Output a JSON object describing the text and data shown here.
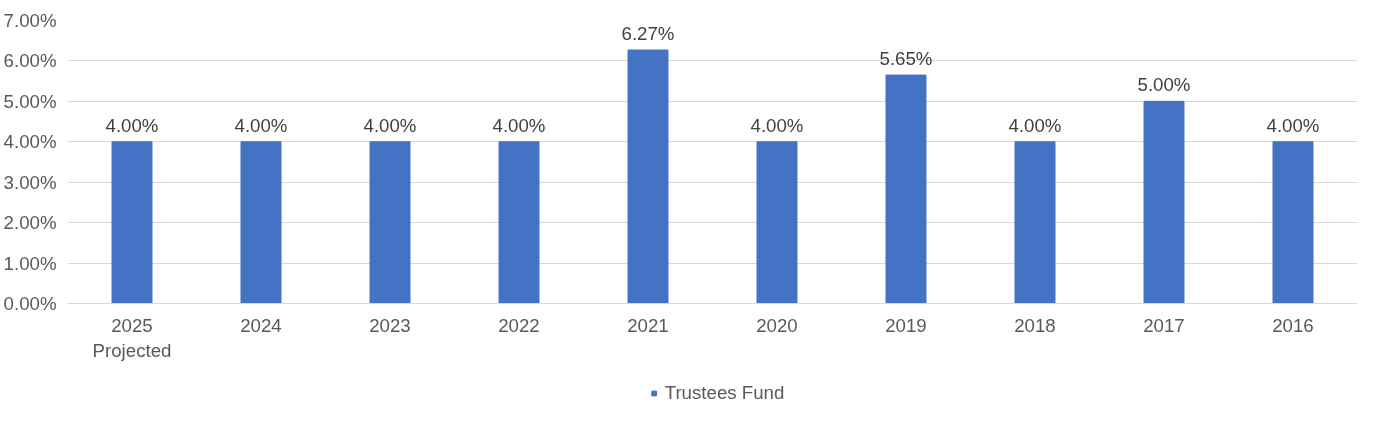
{
  "chart_data": {
    "type": "bar",
    "categories": [
      "2025\nProjected",
      "2024",
      "2023",
      "2022",
      "2021",
      "2020",
      "2019",
      "2018",
      "2017",
      "2016"
    ],
    "series": [
      {
        "name": "Trustees Fund",
        "color": "#4472c4",
        "values": [
          4.0,
          4.0,
          4.0,
          4.0,
          6.27,
          4.0,
          5.65,
          4.0,
          5.0,
          4.0
        ],
        "value_labels": [
          "4.00%",
          "4.00%",
          "4.00%",
          "4.00%",
          "6.27%",
          "4.00%",
          "5.65%",
          "4.00%",
          "5.00%",
          "4.00%"
        ]
      }
    ],
    "ylim": [
      0,
      7
    ],
    "yticks": [
      {
        "value": 0,
        "label": "0.00%"
      },
      {
        "value": 1,
        "label": "1.00%"
      },
      {
        "value": 2,
        "label": "2.00%"
      },
      {
        "value": 3,
        "label": "3.00%"
      },
      {
        "value": 4,
        "label": "4.00%"
      },
      {
        "value": 5,
        "label": "5.00%"
      },
      {
        "value": 6,
        "label": "6.00%"
      },
      {
        "value": 7,
        "label": "7.00%"
      }
    ],
    "grid": "y",
    "legend": "bottom"
  }
}
